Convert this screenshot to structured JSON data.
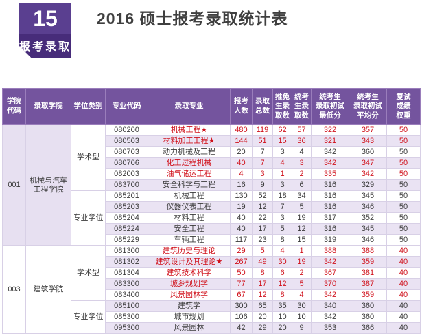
{
  "badge": {
    "number": "15",
    "label": "报考录取"
  },
  "title": "2016 硕士报考录取统计表",
  "colors": {
    "header_bg": "#74549e",
    "row_alt": "#eae3f3",
    "left_column_bg": "#e7e0f1",
    "red_text": "#d0111b",
    "badge_top": "#5a3f90",
    "badge_bottom": "#472c7a"
  },
  "table": {
    "headers": [
      "学院\n代码",
      "录取学院",
      "学位类别",
      "专业代码",
      "录取专业",
      "报考\n人数",
      "录取\n总数",
      "推免\n生录\n取数",
      "统考\n生录\n取数",
      "统考生\n录取初试\n最低分",
      "统考生\n录取初试\n平均分",
      "复试\n成绩\n权重"
    ],
    "value_fields": [
      "报考人数",
      "录取总数",
      "推免生录取数",
      "统考生录取数",
      "统考生录取初试最低分",
      "统考生录取初试平均分",
      "复试成绩权重"
    ],
    "colleges": [
      {
        "code": "001",
        "name": "机械与汽车工程学院",
        "groups": [
          {
            "degree": "学术型",
            "majors": [
              {
                "code": "080200",
                "name": "机械工程★",
                "red": true,
                "values": [
                  480,
                  119,
                  62,
                  57,
                  322,
                  357,
                  50
                ]
              },
              {
                "code": "080503",
                "name": "材料加工工程★",
                "red": true,
                "values": [
                  144,
                  51,
                  15,
                  36,
                  321,
                  343,
                  50
                ]
              },
              {
                "code": "080703",
                "name": "动力机械及工程",
                "red": false,
                "values": [
                  20,
                  7,
                  3,
                  4,
                  342,
                  360,
                  50
                ]
              },
              {
                "code": "080706",
                "name": "化工过程机械",
                "red": true,
                "values": [
                  40,
                  7,
                  4,
                  3,
                  342,
                  347,
                  50
                ]
              },
              {
                "code": "082003",
                "name": "油气储运工程",
                "red": true,
                "values": [
                  4,
                  3,
                  1,
                  2,
                  335,
                  342,
                  50
                ]
              },
              {
                "code": "083700",
                "name": "安全科学与工程",
                "red": false,
                "values": [
                  16,
                  9,
                  3,
                  6,
                  316,
                  329,
                  50
                ]
              }
            ]
          },
          {
            "degree": "专业学位",
            "majors": [
              {
                "code": "085201",
                "name": "机械工程",
                "red": false,
                "values": [
                  130,
                  52,
                  18,
                  34,
                  316,
                  345,
                  50
                ]
              },
              {
                "code": "085203",
                "name": "仪器仪表工程",
                "red": false,
                "values": [
                  19,
                  12,
                  7,
                  5,
                  316,
                  346,
                  50
                ]
              },
              {
                "code": "085204",
                "name": "材料工程",
                "red": false,
                "values": [
                  40,
                  22,
                  3,
                  19,
                  317,
                  352,
                  50
                ]
              },
              {
                "code": "085224",
                "name": "安全工程",
                "red": false,
                "values": [
                  40,
                  17,
                  5,
                  12,
                  316,
                  345,
                  50
                ]
              },
              {
                "code": "085229",
                "name": "车辆工程",
                "red": false,
                "values": [
                  117,
                  23,
                  8,
                  15,
                  319,
                  346,
                  50
                ]
              }
            ]
          }
        ]
      },
      {
        "code": "003",
        "name": "建筑学院",
        "groups": [
          {
            "degree": "学术型",
            "majors": [
              {
                "code": "081300",
                "name": "建筑历史与理论",
                "red": true,
                "values": [
                  29,
                  5,
                  4,
                  1,
                  388,
                  388,
                  40
                ]
              },
              {
                "code": "081302",
                "name": "建筑设计及其理论★",
                "red": true,
                "values": [
                  267,
                  49,
                  30,
                  19,
                  342,
                  359,
                  40
                ]
              },
              {
                "code": "081304",
                "name": "建筑技术科学",
                "red": true,
                "values": [
                  50,
                  8,
                  6,
                  2,
                  367,
                  381,
                  40
                ]
              },
              {
                "code": "083300",
                "name": "城乡规划学",
                "red": true,
                "values": [
                  77,
                  17,
                  12,
                  5,
                  370,
                  387,
                  40
                ]
              },
              {
                "code": "083400",
                "name": "风景园林学",
                "red": true,
                "values": [
                  67,
                  12,
                  8,
                  4,
                  342,
                  359,
                  40
                ]
              }
            ]
          },
          {
            "degree": "专业学位",
            "majors": [
              {
                "code": "085100",
                "name": "建筑学",
                "red": false,
                "values": [
                  300,
                  65,
                  35,
                  30,
                  340,
                  360,
                  40
                ]
              },
              {
                "code": "085300",
                "name": "城市规划",
                "red": false,
                "values": [
                  106,
                  20,
                  10,
                  10,
                  342,
                  360,
                  40
                ]
              },
              {
                "code": "095300",
                "name": "风景园林",
                "red": false,
                "values": [
                  42,
                  29,
                  20,
                  9,
                  353,
                  366,
                  40
                ]
              }
            ]
          }
        ]
      }
    ]
  }
}
